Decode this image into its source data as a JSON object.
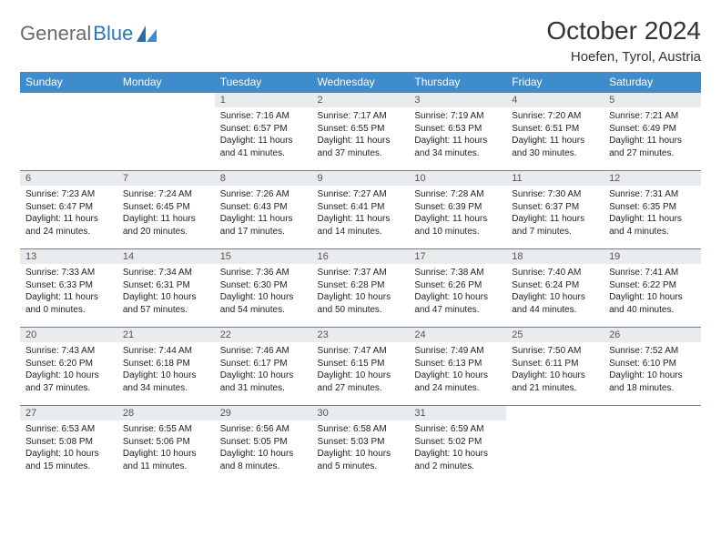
{
  "brand": {
    "part1": "General",
    "part2": "Blue"
  },
  "title": "October 2024",
  "location": "Hoefen, Tyrol, Austria",
  "colors": {
    "header_bg": "#3e8ccc",
    "header_text": "#ffffff",
    "daynum_bg": "#e9ecef",
    "row_border": "#3e8ccc",
    "logo_gray": "#6a6a6a",
    "logo_blue": "#2976bb"
  },
  "weekdays": [
    "Sunday",
    "Monday",
    "Tuesday",
    "Wednesday",
    "Thursday",
    "Friday",
    "Saturday"
  ],
  "weeks": [
    [
      {
        "day": "",
        "lines": [
          "",
          "",
          "",
          ""
        ]
      },
      {
        "day": "",
        "lines": [
          "",
          "",
          "",
          ""
        ]
      },
      {
        "day": "1",
        "lines": [
          "Sunrise: 7:16 AM",
          "Sunset: 6:57 PM",
          "Daylight: 11 hours",
          "and 41 minutes."
        ]
      },
      {
        "day": "2",
        "lines": [
          "Sunrise: 7:17 AM",
          "Sunset: 6:55 PM",
          "Daylight: 11 hours",
          "and 37 minutes."
        ]
      },
      {
        "day": "3",
        "lines": [
          "Sunrise: 7:19 AM",
          "Sunset: 6:53 PM",
          "Daylight: 11 hours",
          "and 34 minutes."
        ]
      },
      {
        "day": "4",
        "lines": [
          "Sunrise: 7:20 AM",
          "Sunset: 6:51 PM",
          "Daylight: 11 hours",
          "and 30 minutes."
        ]
      },
      {
        "day": "5",
        "lines": [
          "Sunrise: 7:21 AM",
          "Sunset: 6:49 PM",
          "Daylight: 11 hours",
          "and 27 minutes."
        ]
      }
    ],
    [
      {
        "day": "6",
        "lines": [
          "Sunrise: 7:23 AM",
          "Sunset: 6:47 PM",
          "Daylight: 11 hours",
          "and 24 minutes."
        ]
      },
      {
        "day": "7",
        "lines": [
          "Sunrise: 7:24 AM",
          "Sunset: 6:45 PM",
          "Daylight: 11 hours",
          "and 20 minutes."
        ]
      },
      {
        "day": "8",
        "lines": [
          "Sunrise: 7:26 AM",
          "Sunset: 6:43 PM",
          "Daylight: 11 hours",
          "and 17 minutes."
        ]
      },
      {
        "day": "9",
        "lines": [
          "Sunrise: 7:27 AM",
          "Sunset: 6:41 PM",
          "Daylight: 11 hours",
          "and 14 minutes."
        ]
      },
      {
        "day": "10",
        "lines": [
          "Sunrise: 7:28 AM",
          "Sunset: 6:39 PM",
          "Daylight: 11 hours",
          "and 10 minutes."
        ]
      },
      {
        "day": "11",
        "lines": [
          "Sunrise: 7:30 AM",
          "Sunset: 6:37 PM",
          "Daylight: 11 hours",
          "and 7 minutes."
        ]
      },
      {
        "day": "12",
        "lines": [
          "Sunrise: 7:31 AM",
          "Sunset: 6:35 PM",
          "Daylight: 11 hours",
          "and 4 minutes."
        ]
      }
    ],
    [
      {
        "day": "13",
        "lines": [
          "Sunrise: 7:33 AM",
          "Sunset: 6:33 PM",
          "Daylight: 11 hours",
          "and 0 minutes."
        ]
      },
      {
        "day": "14",
        "lines": [
          "Sunrise: 7:34 AM",
          "Sunset: 6:31 PM",
          "Daylight: 10 hours",
          "and 57 minutes."
        ]
      },
      {
        "day": "15",
        "lines": [
          "Sunrise: 7:36 AM",
          "Sunset: 6:30 PM",
          "Daylight: 10 hours",
          "and 54 minutes."
        ]
      },
      {
        "day": "16",
        "lines": [
          "Sunrise: 7:37 AM",
          "Sunset: 6:28 PM",
          "Daylight: 10 hours",
          "and 50 minutes."
        ]
      },
      {
        "day": "17",
        "lines": [
          "Sunrise: 7:38 AM",
          "Sunset: 6:26 PM",
          "Daylight: 10 hours",
          "and 47 minutes."
        ]
      },
      {
        "day": "18",
        "lines": [
          "Sunrise: 7:40 AM",
          "Sunset: 6:24 PM",
          "Daylight: 10 hours",
          "and 44 minutes."
        ]
      },
      {
        "day": "19",
        "lines": [
          "Sunrise: 7:41 AM",
          "Sunset: 6:22 PM",
          "Daylight: 10 hours",
          "and 40 minutes."
        ]
      }
    ],
    [
      {
        "day": "20",
        "lines": [
          "Sunrise: 7:43 AM",
          "Sunset: 6:20 PM",
          "Daylight: 10 hours",
          "and 37 minutes."
        ]
      },
      {
        "day": "21",
        "lines": [
          "Sunrise: 7:44 AM",
          "Sunset: 6:18 PM",
          "Daylight: 10 hours",
          "and 34 minutes."
        ]
      },
      {
        "day": "22",
        "lines": [
          "Sunrise: 7:46 AM",
          "Sunset: 6:17 PM",
          "Daylight: 10 hours",
          "and 31 minutes."
        ]
      },
      {
        "day": "23",
        "lines": [
          "Sunrise: 7:47 AM",
          "Sunset: 6:15 PM",
          "Daylight: 10 hours",
          "and 27 minutes."
        ]
      },
      {
        "day": "24",
        "lines": [
          "Sunrise: 7:49 AM",
          "Sunset: 6:13 PM",
          "Daylight: 10 hours",
          "and 24 minutes."
        ]
      },
      {
        "day": "25",
        "lines": [
          "Sunrise: 7:50 AM",
          "Sunset: 6:11 PM",
          "Daylight: 10 hours",
          "and 21 minutes."
        ]
      },
      {
        "day": "26",
        "lines": [
          "Sunrise: 7:52 AM",
          "Sunset: 6:10 PM",
          "Daylight: 10 hours",
          "and 18 minutes."
        ]
      }
    ],
    [
      {
        "day": "27",
        "lines": [
          "Sunrise: 6:53 AM",
          "Sunset: 5:08 PM",
          "Daylight: 10 hours",
          "and 15 minutes."
        ]
      },
      {
        "day": "28",
        "lines": [
          "Sunrise: 6:55 AM",
          "Sunset: 5:06 PM",
          "Daylight: 10 hours",
          "and 11 minutes."
        ]
      },
      {
        "day": "29",
        "lines": [
          "Sunrise: 6:56 AM",
          "Sunset: 5:05 PM",
          "Daylight: 10 hours",
          "and 8 minutes."
        ]
      },
      {
        "day": "30",
        "lines": [
          "Sunrise: 6:58 AM",
          "Sunset: 5:03 PM",
          "Daylight: 10 hours",
          "and 5 minutes."
        ]
      },
      {
        "day": "31",
        "lines": [
          "Sunrise: 6:59 AM",
          "Sunset: 5:02 PM",
          "Daylight: 10 hours",
          "and 2 minutes."
        ]
      },
      {
        "day": "",
        "lines": [
          "",
          "",
          "",
          ""
        ]
      },
      {
        "day": "",
        "lines": [
          "",
          "",
          "",
          ""
        ]
      }
    ]
  ]
}
